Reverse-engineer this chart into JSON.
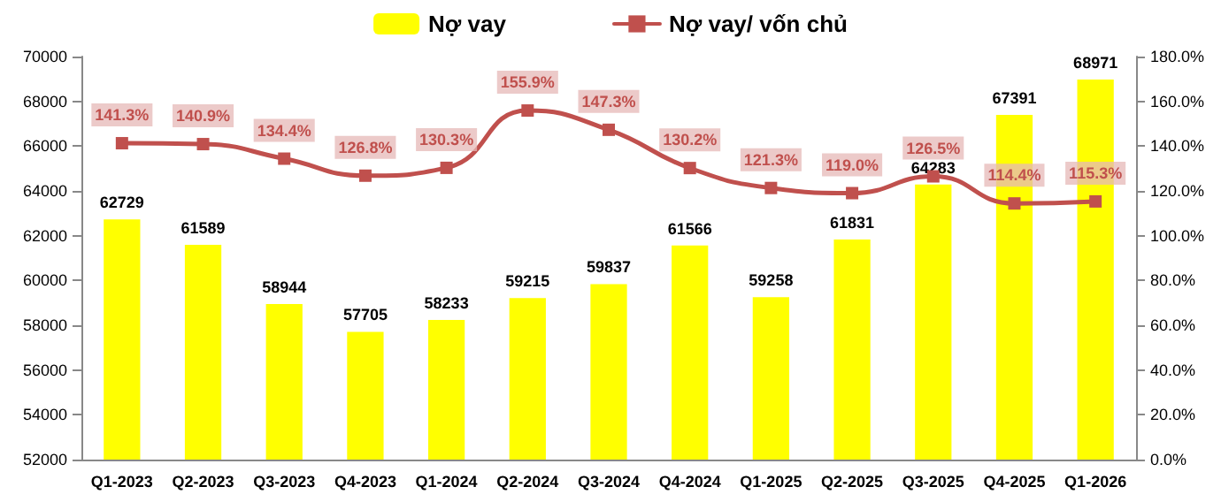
{
  "chart_data": {
    "type": "bar",
    "categories": [
      "Q1-2023",
      "Q2-2023",
      "Q3-2023",
      "Q4-2023",
      "Q1-2024",
      "Q2-2024",
      "Q3-2024",
      "Q4-2024",
      "Q1-2025",
      "Q2-2025",
      "Q3-2025",
      "Q4-2025",
      "Q1-2026"
    ],
    "series": [
      {
        "name": "Nợ vay",
        "color": "#ffff00",
        "values": [
          62729,
          61589,
          58944,
          57705,
          58233,
          59215,
          59837,
          61566,
          59258,
          61831,
          64283,
          67391,
          68971
        ],
        "data_labels": true
      },
      {
        "name": "Nợ vay/ vốn chủ",
        "type": "line",
        "axis": "y2",
        "color": "#c0504d",
        "marker": "square",
        "values": [
          141.3,
          140.9,
          134.4,
          126.8,
          130.3,
          155.9,
          147.3,
          130.2,
          121.3,
          119.0,
          126.5,
          114.4,
          115.3
        ],
        "value_labels": [
          "141.3%",
          "140.9%",
          "134.4%",
          "126.8%",
          "130.3%",
          "155.9%",
          "147.3%",
          "130.2%",
          "121.3%",
          "119.0%",
          "126.5%",
          "114.4%",
          "115.3%"
        ]
      }
    ],
    "ylim": [
      52000,
      70000
    ],
    "yticks": [
      52000,
      54000,
      56000,
      58000,
      60000,
      62000,
      64000,
      66000,
      68000,
      70000
    ],
    "y2lim": [
      0,
      180
    ],
    "y2ticks": [
      {
        "value": 0,
        "label": "0.0%"
      },
      {
        "value": 20,
        "label": "20.0%"
      },
      {
        "value": 40,
        "label": "40.0%"
      },
      {
        "value": 60,
        "label": "60.0%"
      },
      {
        "value": 80,
        "label": "80.0%"
      },
      {
        "value": 100,
        "label": "100.0%"
      },
      {
        "value": 120,
        "label": "120.0%"
      },
      {
        "value": 140,
        "label": "140.0%"
      },
      {
        "value": 160,
        "label": "160.0%"
      },
      {
        "value": 180,
        "label": "180.0%"
      }
    ],
    "grid": false,
    "legend": "top"
  }
}
